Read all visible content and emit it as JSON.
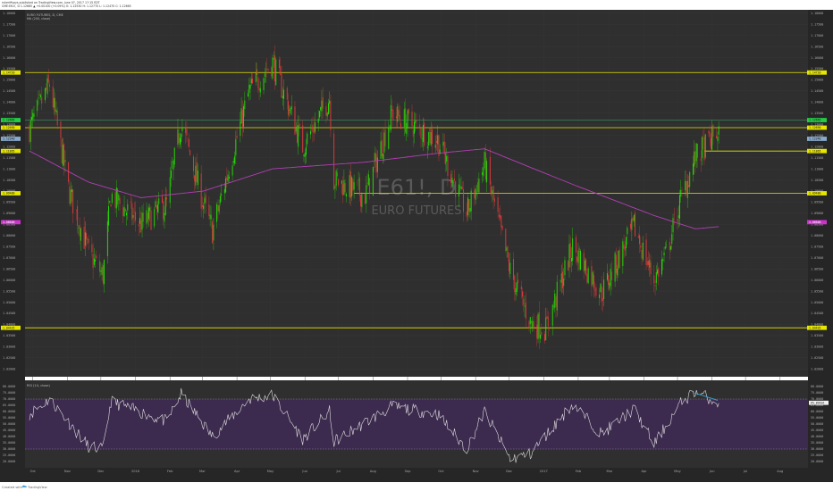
{
  "header": {
    "author_line": "rsheriffsays published on TradingView.com, June 07, 2017 17:15 EDT",
    "symbol_line": "CME:E61!, D  1.12665 ▲ +0.00100 (+0.09%) O: 1.12530  H: 1.12770  L: 1.12470  C: 1.12665"
  },
  "price_pane": {
    "series_title": "EURO FUTURES, D, CME",
    "ma_label": "MA (200, close)",
    "watermark_symbol": "E61!, D",
    "watermark_name": "EURO FUTURES"
  },
  "rsi_pane": {
    "label": "RSI (14, close)",
    "value_tag": "65.89616"
  },
  "footer": {
    "created_with": "Created with",
    "brand": "TradingView"
  },
  "colors": {
    "background": "#2f2f2f",
    "bull": "#26e600",
    "bear": "#e53b3b",
    "ma": "#b23fb5",
    "level": "#e6e600",
    "green_level": "#3cb371",
    "rsi_fill": "#3d2b4f",
    "rsi_line": "#dddddd",
    "trendline": "#33a8e0"
  },
  "chart_data": {
    "type": "candlestick",
    "x_ticks": [
      "Oct",
      "Nov",
      "Dec",
      "2016",
      "Feb",
      "Mar",
      "Apr",
      "May",
      "Jun",
      "Jul",
      "Aug",
      "Sep",
      "Oct",
      "Nov",
      "Dec",
      "2017",
      "Feb",
      "Mar",
      "Apr",
      "May",
      "Jun",
      "Jul",
      "Aug"
    ],
    "y_range": [
      1.0165,
      1.1815
    ],
    "y_ticks": [
      "1.18000",
      "1.17500",
      "1.17000",
      "1.16500",
      "1.16000",
      "1.15500",
      "1.15000",
      "1.14500",
      "1.14000",
      "1.13500",
      "1.13000",
      "1.12500",
      "1.12000",
      "1.11500",
      "1.11000",
      "1.10500",
      "1.10000",
      "1.09500",
      "1.09000",
      "1.08500",
      "1.08000",
      "1.07500",
      "1.07000",
      "1.06500",
      "1.06000",
      "1.05500",
      "1.05000",
      "1.04500",
      "1.04000",
      "1.03500",
      "1.03000",
      "1.02500",
      "1.02000"
    ],
    "horizontal_levels": [
      {
        "value": 1.1533,
        "label": "1.14720",
        "kind": "resistance"
      },
      {
        "value": 1.1319,
        "label": "1.12665",
        "kind": "current"
      },
      {
        "value": 1.1285,
        "label": "1.12690",
        "kind": "level"
      },
      {
        "value": 1.118,
        "label": "1.11865",
        "kind": "level"
      },
      {
        "value": 1.099,
        "label": "1.09480",
        "kind": "level"
      },
      {
        "value": 1.0385,
        "label": "1.04435",
        "kind": "support"
      }
    ],
    "ma_tag": "1.08600",
    "close_series_anchors": [
      {
        "date": "2015-09-28",
        "close": 1.128
      },
      {
        "date": "2015-10-16",
        "close": 1.148
      },
      {
        "date": "2015-11-02",
        "close": 1.101
      },
      {
        "date": "2015-11-20",
        "close": 1.072
      },
      {
        "date": "2015-12-03",
        "close": 1.062
      },
      {
        "date": "2015-12-10",
        "close": 1.098
      },
      {
        "date": "2016-01-06",
        "close": 1.085
      },
      {
        "date": "2016-01-29",
        "close": 1.094
      },
      {
        "date": "2016-02-11",
        "close": 1.131
      },
      {
        "date": "2016-03-02",
        "close": 1.094
      },
      {
        "date": "2016-03-10",
        "close": 1.082
      },
      {
        "date": "2016-04-12",
        "close": 1.145
      },
      {
        "date": "2016-05-03",
        "close": 1.158
      },
      {
        "date": "2016-05-30",
        "close": 1.12
      },
      {
        "date": "2016-06-23",
        "close": 1.142
      },
      {
        "date": "2016-06-27",
        "close": 1.105
      },
      {
        "date": "2016-07-25",
        "close": 1.098
      },
      {
        "date": "2016-08-18",
        "close": 1.135
      },
      {
        "date": "2016-09-28",
        "close": 1.123
      },
      {
        "date": "2016-10-24",
        "close": 1.09
      },
      {
        "date": "2016-11-09",
        "close": 1.112
      },
      {
        "date": "2016-12-02",
        "close": 1.064
      },
      {
        "date": "2016-12-20",
        "close": 1.041
      },
      {
        "date": "2017-01-03",
        "close": 1.038
      },
      {
        "date": "2017-01-27",
        "close": 1.075
      },
      {
        "date": "2017-02-22",
        "close": 1.054
      },
      {
        "date": "2017-03-23",
        "close": 1.084
      },
      {
        "date": "2017-04-10",
        "close": 1.06
      },
      {
        "date": "2017-04-21",
        "close": 1.072
      },
      {
        "date": "2017-05-05",
        "close": 1.098
      },
      {
        "date": "2017-05-17",
        "close": 1.115
      },
      {
        "date": "2017-06-07",
        "close": 1.127
      }
    ],
    "ma200_anchors": [
      {
        "date": "2015-09-28",
        "close": 1.118
      },
      {
        "date": "2015-11-20",
        "close": 1.104
      },
      {
        "date": "2016-01-06",
        "close": 1.097
      },
      {
        "date": "2016-03-02",
        "close": 1.1
      },
      {
        "date": "2016-05-03",
        "close": 1.11
      },
      {
        "date": "2016-07-25",
        "close": 1.113
      },
      {
        "date": "2016-09-28",
        "close": 1.117
      },
      {
        "date": "2016-11-09",
        "close": 1.119
      },
      {
        "date": "2017-01-27",
        "close": 1.103
      },
      {
        "date": "2017-04-10",
        "close": 1.089
      },
      {
        "date": "2017-05-17",
        "close": 1.083
      },
      {
        "date": "2017-06-07",
        "close": 1.084
      }
    ],
    "rsi_range": [
      15,
      85
    ],
    "rsi_ticks": [
      "80.0000",
      "75.0000",
      "70.0000",
      "65.0000",
      "60.0000",
      "55.0000",
      "50.0000",
      "45.0000",
      "40.0000",
      "35.0000",
      "30.0000",
      "25.0000",
      "20.0000"
    ],
    "rsi_bands": [
      70,
      30
    ],
    "rsi_anchors": [
      {
        "date": "2015-09-28",
        "rsi": 58
      },
      {
        "date": "2015-10-16",
        "rsi": 70
      },
      {
        "date": "2015-11-20",
        "rsi": 32
      },
      {
        "date": "2015-12-03",
        "rsi": 30
      },
      {
        "date": "2015-12-10",
        "rsi": 68
      },
      {
        "date": "2016-01-29",
        "rsi": 52
      },
      {
        "date": "2016-02-11",
        "rsi": 74
      },
      {
        "date": "2016-03-10",
        "rsi": 40
      },
      {
        "date": "2016-04-12",
        "rsi": 70
      },
      {
        "date": "2016-05-03",
        "rsi": 73
      },
      {
        "date": "2016-05-30",
        "rsi": 38
      },
      {
        "date": "2016-06-23",
        "rsi": 60
      },
      {
        "date": "2016-06-27",
        "rsi": 36
      },
      {
        "date": "2016-08-18",
        "rsi": 64
      },
      {
        "date": "2016-09-28",
        "rsi": 58
      },
      {
        "date": "2016-10-24",
        "rsi": 30
      },
      {
        "date": "2016-11-09",
        "rsi": 60
      },
      {
        "date": "2016-12-02",
        "rsi": 22
      },
      {
        "date": "2016-12-20",
        "rsi": 26
      },
      {
        "date": "2017-01-27",
        "rsi": 66
      },
      {
        "date": "2017-02-22",
        "rsi": 42
      },
      {
        "date": "2017-03-23",
        "rsi": 62
      },
      {
        "date": "2017-04-10",
        "rsi": 34
      },
      {
        "date": "2017-05-05",
        "rsi": 68
      },
      {
        "date": "2017-05-17",
        "rsi": 76
      },
      {
        "date": "2017-06-07",
        "rsi": 67
      }
    ],
    "divergence_line": {
      "rsi_start": {
        "date": "2017-05-16",
        "rsi": 75
      },
      "rsi_end": {
        "date": "2017-06-06",
        "rsi": 69
      }
    }
  }
}
